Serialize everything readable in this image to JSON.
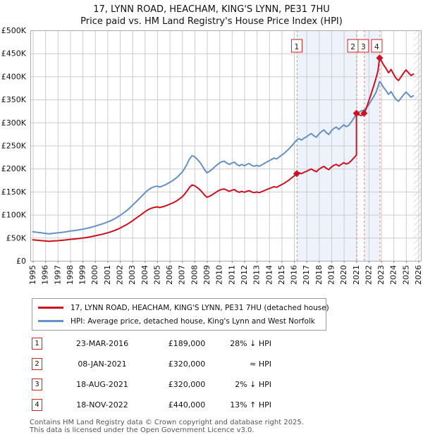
{
  "title": {
    "line1": "17, LYNN ROAD, HEACHAM, KING'S LYNN, PE31 7HU",
    "line2": "Price paid vs. HM Land Registry's House Price Index (HPI)"
  },
  "chart_data": {
    "type": "line",
    "title": "Price paid vs. HPI",
    "values_unit": "GBP thousands",
    "x_axis": {
      "range": [
        1994.8,
        2026.2
      ],
      "ticks": [
        1995,
        1996,
        1997,
        1998,
        1999,
        2000,
        2001,
        2002,
        2003,
        2004,
        2005,
        2006,
        2007,
        2008,
        2009,
        2010,
        2011,
        2012,
        2013,
        2014,
        2015,
        2016,
        2017,
        2018,
        2019,
        2020,
        2021,
        2022,
        2023,
        2024,
        2025,
        2026
      ]
    },
    "y_axis": {
      "range": [
        0,
        500
      ],
      "tick_values": [
        0,
        50,
        100,
        150,
        200,
        250,
        300,
        350,
        400,
        450,
        500
      ],
      "tick_labels": [
        "£0",
        "£50K",
        "£100K",
        "£150K",
        "£200K",
        "£250K",
        "£300K",
        "£350K",
        "£400K",
        "£450K",
        "£500K"
      ]
    },
    "grid": true,
    "legend_position": "bottom",
    "series": [
      {
        "name": "17, LYNN ROAD, HEACHAM, KING'S LYNN, PE31 7HU (detached house)",
        "color": "#cc1122",
        "points": [
          [
            1995.0,
            45.5
          ],
          [
            1995.3,
            44.7
          ],
          [
            1995.6,
            44.0
          ],
          [
            1996.0,
            42.9
          ],
          [
            1996.3,
            42.2
          ],
          [
            1996.6,
            42.9
          ],
          [
            1997.0,
            43.6
          ],
          [
            1997.3,
            44.4
          ],
          [
            1997.6,
            45.1
          ],
          [
            1998.0,
            46.5
          ],
          [
            1998.3,
            47.3
          ],
          [
            1998.6,
            48.0
          ],
          [
            1999.0,
            49.4
          ],
          [
            1999.3,
            50.5
          ],
          [
            1999.6,
            51.9
          ],
          [
            2000.0,
            54.1
          ],
          [
            2000.3,
            55.9
          ],
          [
            2000.6,
            57.7
          ],
          [
            2001.0,
            60.6
          ],
          [
            2001.3,
            63.1
          ],
          [
            2001.6,
            66.0
          ],
          [
            2002.0,
            70.7
          ],
          [
            2002.3,
            75.0
          ],
          [
            2002.6,
            79.4
          ],
          [
            2003.0,
            86.6
          ],
          [
            2003.3,
            92.3
          ],
          [
            2003.6,
            98.1
          ],
          [
            2004.0,
            106.0
          ],
          [
            2004.2,
            109.7
          ],
          [
            2004.4,
            112.5
          ],
          [
            2004.6,
            114.7
          ],
          [
            2004.8,
            116.1
          ],
          [
            2005.0,
            116.9
          ],
          [
            2005.2,
            115.4
          ],
          [
            2005.4,
            116.9
          ],
          [
            2005.6,
            118.3
          ],
          [
            2005.8,
            120.5
          ],
          [
            2006.0,
            122.6
          ],
          [
            2006.3,
            126.2
          ],
          [
            2006.6,
            130.6
          ],
          [
            2007.0,
            138.5
          ],
          [
            2007.2,
            144.3
          ],
          [
            2007.4,
            151.5
          ],
          [
            2007.6,
            159.4
          ],
          [
            2007.8,
            164.5
          ],
          [
            2008.0,
            163.0
          ],
          [
            2008.2,
            159.4
          ],
          [
            2008.4,
            155.1
          ],
          [
            2008.6,
            149.3
          ],
          [
            2008.8,
            142.8
          ],
          [
            2009.0,
            137.8
          ],
          [
            2009.2,
            139.9
          ],
          [
            2009.4,
            142.8
          ],
          [
            2009.6,
            146.4
          ],
          [
            2009.8,
            150.0
          ],
          [
            2010.0,
            153.0
          ],
          [
            2010.2,
            155.1
          ],
          [
            2010.4,
            155.8
          ],
          [
            2010.6,
            153.0
          ],
          [
            2010.8,
            150.8
          ],
          [
            2011.0,
            153.0
          ],
          [
            2011.2,
            154.4
          ],
          [
            2011.4,
            150.8
          ],
          [
            2011.6,
            148.6
          ],
          [
            2011.8,
            150.8
          ],
          [
            2012.0,
            148.6
          ],
          [
            2012.2,
            150.8
          ],
          [
            2012.4,
            152.2
          ],
          [
            2012.6,
            149.3
          ],
          [
            2012.8,
            147.9
          ],
          [
            2013.0,
            149.3
          ],
          [
            2013.2,
            147.9
          ],
          [
            2013.4,
            150.0
          ],
          [
            2013.6,
            152.2
          ],
          [
            2013.8,
            154.4
          ],
          [
            2014.0,
            156.5
          ],
          [
            2014.2,
            158.7
          ],
          [
            2014.4,
            160.9
          ],
          [
            2014.6,
            159.4
          ],
          [
            2014.8,
            162.3
          ],
          [
            2015.0,
            165.2
          ],
          [
            2015.2,
            168.1
          ],
          [
            2015.4,
            171.7
          ],
          [
            2015.6,
            175.3
          ],
          [
            2015.8,
            179.6
          ],
          [
            2016.0,
            184.0
          ],
          [
            2016.22,
            189.0
          ],
          [
            2016.4,
            191.2
          ],
          [
            2016.6,
            189.0
          ],
          [
            2016.8,
            191.9
          ],
          [
            2017.0,
            194.1
          ],
          [
            2017.2,
            196.9
          ],
          [
            2017.4,
            199.1
          ],
          [
            2017.6,
            195.5
          ],
          [
            2017.8,
            193.3
          ],
          [
            2018.0,
            198.4
          ],
          [
            2018.2,
            202.0
          ],
          [
            2018.4,
            204.9
          ],
          [
            2018.6,
            200.6
          ],
          [
            2018.8,
            197.7
          ],
          [
            2019.0,
            203.4
          ],
          [
            2019.2,
            207.0
          ],
          [
            2019.4,
            209.2
          ],
          [
            2019.6,
            205.6
          ],
          [
            2019.8,
            209.2
          ],
          [
            2020.0,
            212.8
          ],
          [
            2020.2,
            209.9
          ],
          [
            2020.4,
            212.1
          ],
          [
            2020.6,
            217.1
          ],
          [
            2020.8,
            222.9
          ],
          [
            2021.02,
            229.4
          ],
          [
            2021.02,
            320.0
          ],
          [
            2021.2,
            317.0
          ],
          [
            2021.4,
            315.0
          ],
          [
            2021.63,
            320.0
          ],
          [
            2021.8,
            330.0
          ],
          [
            2022.0,
            346.0
          ],
          [
            2022.2,
            362.0
          ],
          [
            2022.4,
            379.0
          ],
          [
            2022.6,
            397.0
          ],
          [
            2022.75,
            412.0
          ],
          [
            2022.88,
            440.0
          ],
          [
            2023.0,
            435.0
          ],
          [
            2023.2,
            425.0
          ],
          [
            2023.4,
            417.0
          ],
          [
            2023.6,
            408.0
          ],
          [
            2023.8,
            415.0
          ],
          [
            2024.0,
            405.0
          ],
          [
            2024.2,
            396.0
          ],
          [
            2024.4,
            391.0
          ],
          [
            2024.6,
            399.0
          ],
          [
            2024.8,
            407.0
          ],
          [
            2025.0,
            414.0
          ],
          [
            2025.2,
            408.0
          ],
          [
            2025.4,
            402.0
          ],
          [
            2025.6,
            405.0
          ]
        ]
      },
      {
        "name": "HPI: Average price, detached house, King's Lynn and West Norfolk",
        "color": "#6490c5",
        "points": [
          [
            1995.0,
            63
          ],
          [
            1995.3,
            62
          ],
          [
            1995.6,
            61
          ],
          [
            1996.0,
            59.5
          ],
          [
            1996.3,
            58.5
          ],
          [
            1996.6,
            59.5
          ],
          [
            1997.0,
            60.5
          ],
          [
            1997.3,
            61.5
          ],
          [
            1997.6,
            62.5
          ],
          [
            1998.0,
            64.5
          ],
          [
            1998.3,
            65.5
          ],
          [
            1998.6,
            66.5
          ],
          [
            1999.0,
            68.5
          ],
          [
            1999.3,
            70
          ],
          [
            1999.6,
            72
          ],
          [
            2000.0,
            75
          ],
          [
            2000.3,
            77.5
          ],
          [
            2000.6,
            80
          ],
          [
            2001.0,
            84
          ],
          [
            2001.3,
            87.5
          ],
          [
            2001.6,
            91.5
          ],
          [
            2002.0,
            98
          ],
          [
            2002.3,
            104
          ],
          [
            2002.6,
            110
          ],
          [
            2003.0,
            120
          ],
          [
            2003.3,
            128
          ],
          [
            2003.6,
            136
          ],
          [
            2004.0,
            147
          ],
          [
            2004.2,
            152
          ],
          [
            2004.4,
            156
          ],
          [
            2004.6,
            159
          ],
          [
            2004.8,
            161
          ],
          [
            2005.0,
            162
          ],
          [
            2005.2,
            160
          ],
          [
            2005.4,
            162
          ],
          [
            2005.6,
            164
          ],
          [
            2005.8,
            167
          ],
          [
            2006.0,
            170
          ],
          [
            2006.3,
            175
          ],
          [
            2006.6,
            181
          ],
          [
            2007.0,
            192
          ],
          [
            2007.2,
            200
          ],
          [
            2007.4,
            210
          ],
          [
            2007.6,
            221
          ],
          [
            2007.8,
            228
          ],
          [
            2008.0,
            226
          ],
          [
            2008.2,
            221
          ],
          [
            2008.4,
            215
          ],
          [
            2008.6,
            207
          ],
          [
            2008.8,
            198
          ],
          [
            2009.0,
            191
          ],
          [
            2009.2,
            194
          ],
          [
            2009.4,
            198
          ],
          [
            2009.6,
            203
          ],
          [
            2009.8,
            208
          ],
          [
            2010.0,
            212
          ],
          [
            2010.2,
            215
          ],
          [
            2010.4,
            216
          ],
          [
            2010.6,
            212
          ],
          [
            2010.8,
            209
          ],
          [
            2011.0,
            212
          ],
          [
            2011.2,
            214
          ],
          [
            2011.4,
            209
          ],
          [
            2011.6,
            206
          ],
          [
            2011.8,
            209
          ],
          [
            2012.0,
            206
          ],
          [
            2012.2,
            209
          ],
          [
            2012.4,
            211
          ],
          [
            2012.6,
            207
          ],
          [
            2012.8,
            205
          ],
          [
            2013.0,
            207
          ],
          [
            2013.2,
            205
          ],
          [
            2013.4,
            208
          ],
          [
            2013.6,
            211
          ],
          [
            2013.8,
            214
          ],
          [
            2014.0,
            217
          ],
          [
            2014.2,
            220
          ],
          [
            2014.4,
            223
          ],
          [
            2014.6,
            221
          ],
          [
            2014.8,
            225
          ],
          [
            2015.0,
            229
          ],
          [
            2015.2,
            233
          ],
          [
            2015.4,
            238
          ],
          [
            2015.6,
            243
          ],
          [
            2015.8,
            249
          ],
          [
            2016.0,
            255
          ],
          [
            2016.22,
            262
          ],
          [
            2016.4,
            265
          ],
          [
            2016.6,
            262
          ],
          [
            2016.8,
            266
          ],
          [
            2017.0,
            269
          ],
          [
            2017.2,
            273
          ],
          [
            2017.4,
            276
          ],
          [
            2017.6,
            271
          ],
          [
            2017.8,
            268
          ],
          [
            2018.0,
            275
          ],
          [
            2018.2,
            280
          ],
          [
            2018.4,
            284
          ],
          [
            2018.6,
            278
          ],
          [
            2018.8,
            274
          ],
          [
            2019.0,
            282
          ],
          [
            2019.2,
            287
          ],
          [
            2019.4,
            290
          ],
          [
            2019.6,
            285
          ],
          [
            2019.8,
            290
          ],
          [
            2020.0,
            295
          ],
          [
            2020.2,
            291
          ],
          [
            2020.4,
            294
          ],
          [
            2020.6,
            301
          ],
          [
            2020.8,
            309
          ],
          [
            2021.02,
            318
          ],
          [
            2021.2,
            322
          ],
          [
            2021.4,
            325
          ],
          [
            2021.63,
            327
          ],
          [
            2021.8,
            331
          ],
          [
            2022.0,
            338
          ],
          [
            2022.2,
            347
          ],
          [
            2022.4,
            356
          ],
          [
            2022.6,
            366
          ],
          [
            2022.75,
            377
          ],
          [
            2022.88,
            389
          ],
          [
            2023.0,
            385
          ],
          [
            2023.2,
            376
          ],
          [
            2023.4,
            369
          ],
          [
            2023.6,
            361
          ],
          [
            2023.8,
            367
          ],
          [
            2024.0,
            358
          ],
          [
            2024.2,
            350
          ],
          [
            2024.4,
            346
          ],
          [
            2024.6,
            353
          ],
          [
            2024.8,
            360
          ],
          [
            2025.0,
            366
          ],
          [
            2025.2,
            361
          ],
          [
            2025.4,
            355
          ],
          [
            2025.6,
            358
          ]
        ]
      }
    ],
    "transactions": [
      {
        "num": "1",
        "x": 2016.22,
        "y": 189,
        "box_dx": 0
      },
      {
        "num": "2",
        "x": 2021.02,
        "y": 320,
        "box_dx": -5
      },
      {
        "num": "3",
        "x": 2021.63,
        "y": 320,
        "box_dx": -1
      },
      {
        "num": "4",
        "x": 2022.88,
        "y": 440,
        "box_dx": -4
      }
    ],
    "shaded_bands": [
      [
        2016.22,
        2021.02
      ],
      [
        2021.63,
        2022.88
      ]
    ],
    "hatch_band": [
      2025.63,
      2026.2
    ]
  },
  "colors": {
    "grid": "#cccccc",
    "plot_border": "#aaaaaa",
    "shaded_band": "#eef2fb",
    "dashed_line": "#f08080",
    "hatch": "#bbbbbb",
    "marker_box_border": "#cc2222"
  },
  "table": {
    "rows": [
      {
        "num": "1",
        "date": "23-MAR-2016",
        "price": "£189,000",
        "delta": "28% ↓ HPI"
      },
      {
        "num": "2",
        "date": "08-JAN-2021",
        "price": "£320,000",
        "delta": "≈ HPI"
      },
      {
        "num": "3",
        "date": "18-AUG-2021",
        "price": "£320,000",
        "delta": "2% ↓ HPI"
      },
      {
        "num": "4",
        "date": "18-NOV-2022",
        "price": "£440,000",
        "delta": "13% ↑ HPI"
      }
    ]
  },
  "footer": {
    "line1": "Contains HM Land Registry data © Crown copyright and database right 2025.",
    "line2": "This data is licensed under the Open Government Licence v3.0."
  }
}
